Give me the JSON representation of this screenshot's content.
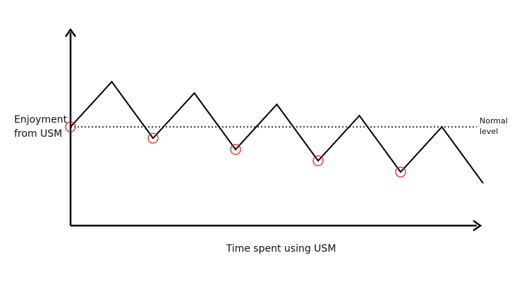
{
  "diagram": {
    "y_axis_label_lines": [
      "Enjoyment",
      "from USM"
    ],
    "x_axis_label": "Time spent using USM",
    "reference_label_lines": [
      "Normal",
      "level"
    ],
    "colors": {
      "line": "#000000",
      "marker": "#e32020",
      "background": "#ffffff"
    }
  },
  "chart_data": {
    "type": "line",
    "series": [
      {
        "values": [
          {
            "t": 0,
            "enjoyment": 0
          },
          {
            "t": 1,
            "enjoyment": 8
          },
          {
            "t": 2,
            "enjoyment": -2
          },
          {
            "t": 3,
            "enjoyment": 6
          },
          {
            "t": 4,
            "enjoyment": -4
          },
          {
            "t": 5,
            "enjoyment": 4
          },
          {
            "t": 6,
            "enjoyment": -6
          },
          {
            "t": 7,
            "enjoyment": 2
          },
          {
            "t": 8,
            "enjoyment": -8
          },
          {
            "t": 9,
            "enjoyment": 0
          },
          {
            "t": 10,
            "enjoyment": -10
          }
        ]
      }
    ],
    "reference_line": {
      "value": 0,
      "style": "dotted"
    },
    "highlighted_points": [
      0,
      2,
      4,
      6,
      8
    ],
    "grid": false
  }
}
